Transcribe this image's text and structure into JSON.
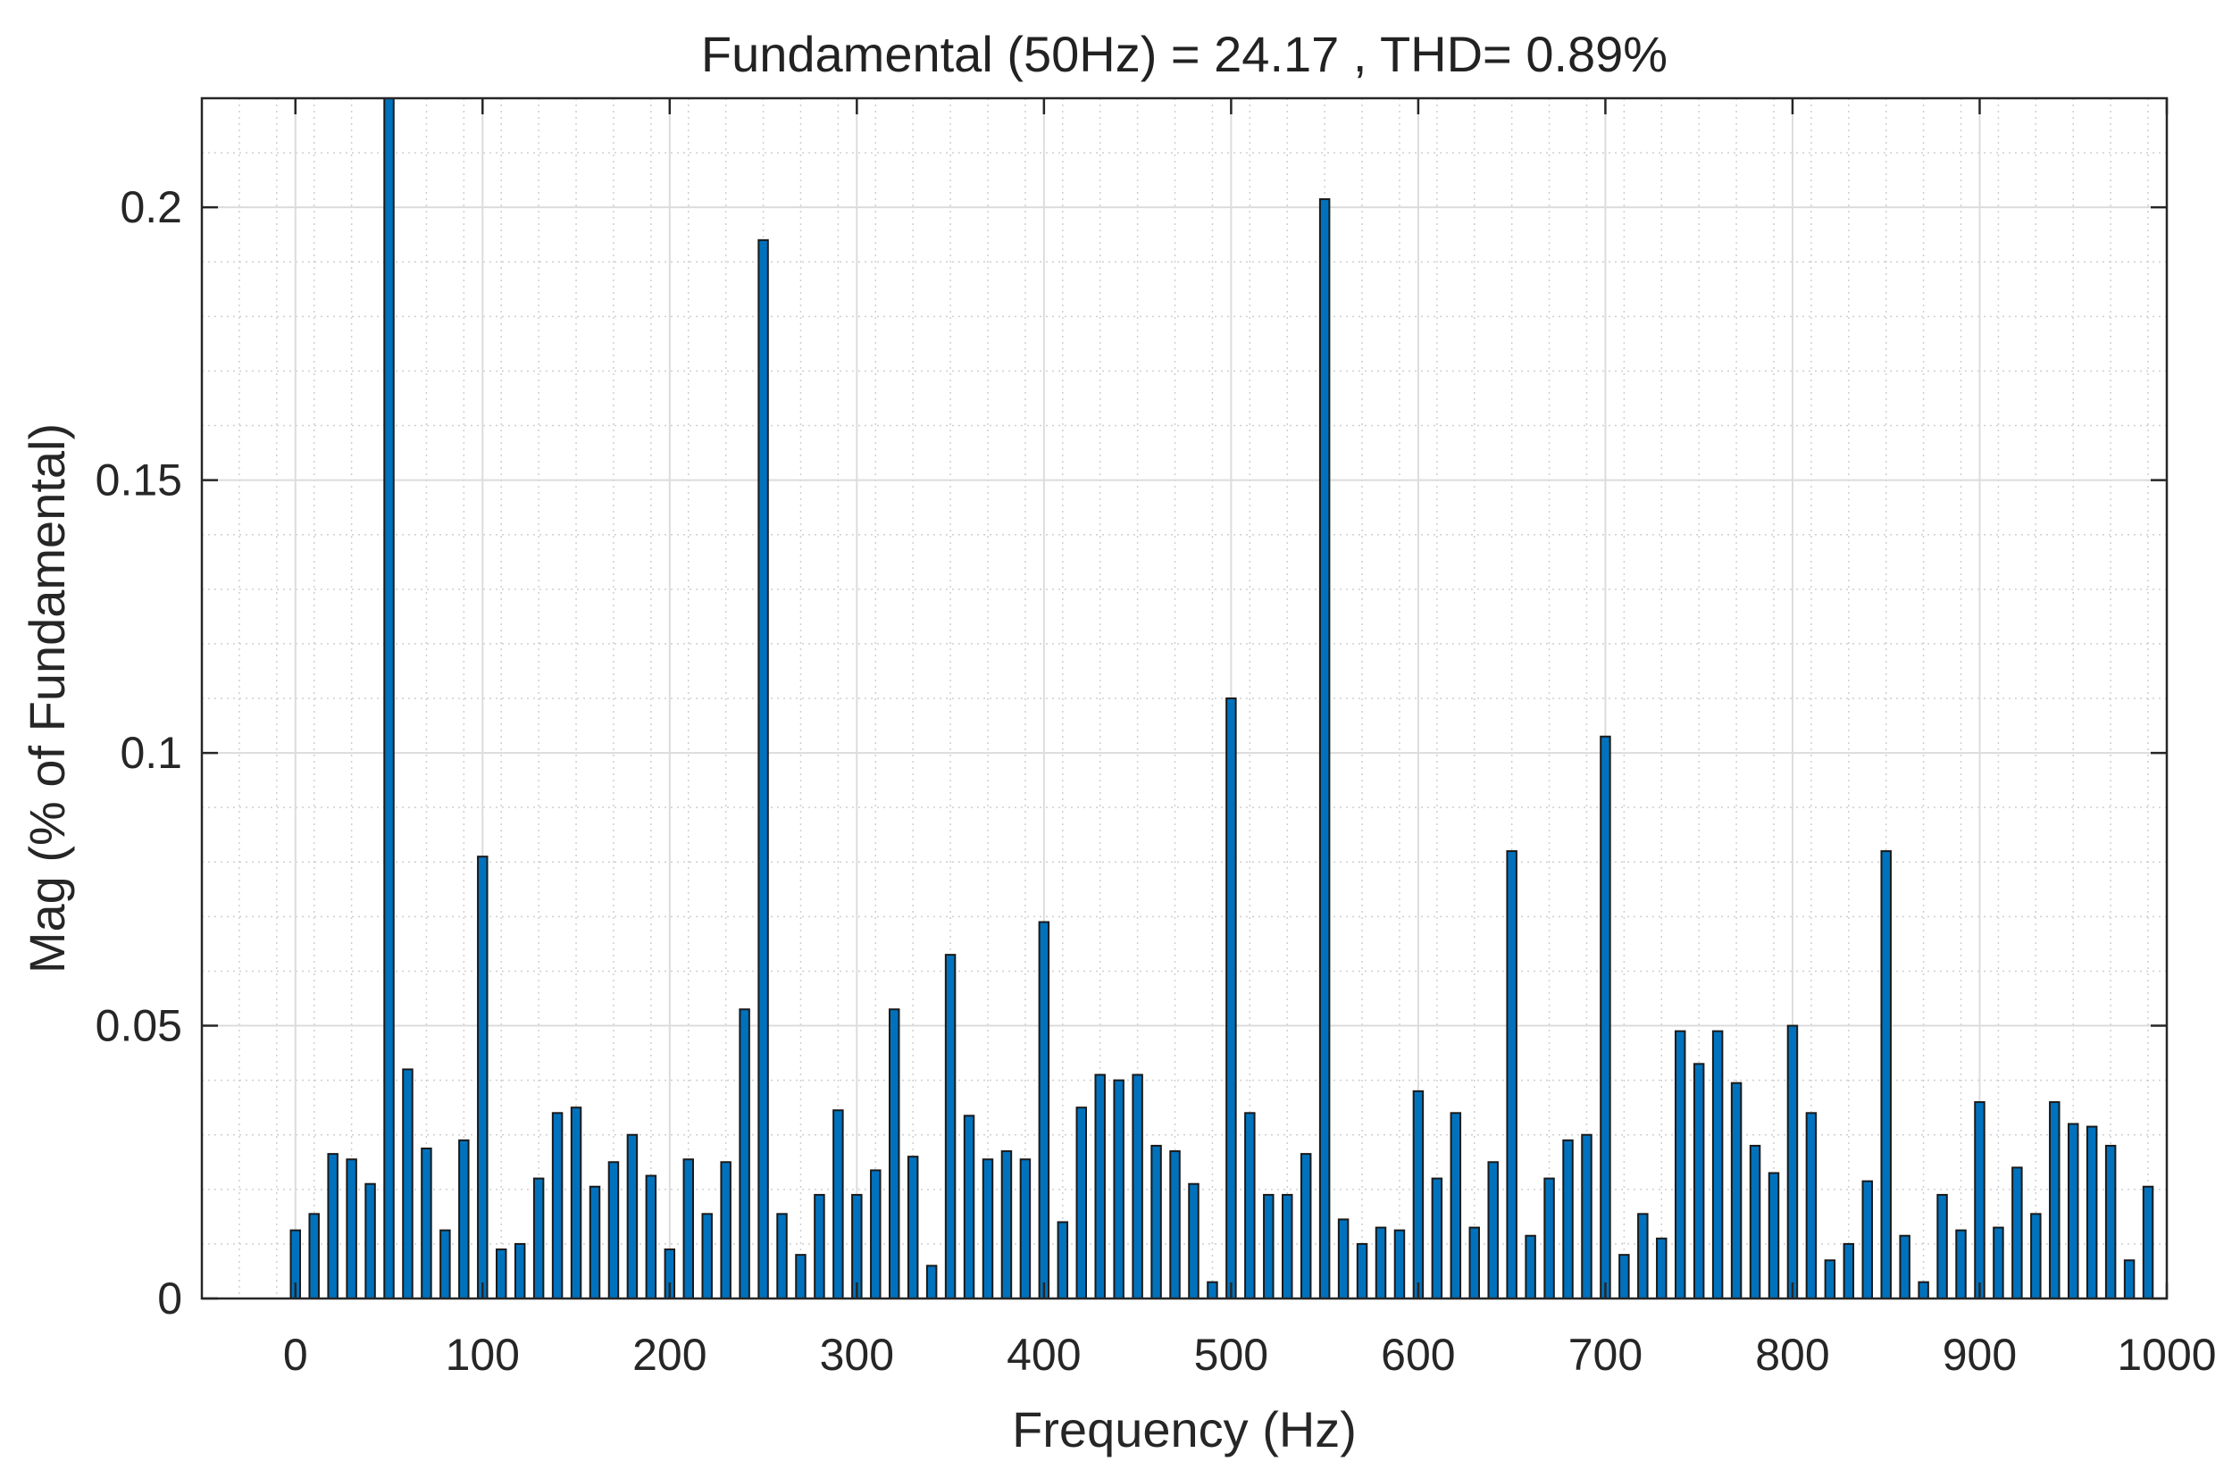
{
  "chart_data": {
    "type": "bar",
    "title": "Fundamental (50Hz) = 24.17 , THD= 0.89%",
    "xlabel": "Frequency (Hz)",
    "ylabel": "Mag (% of Fundamental)",
    "xlim": [
      -50,
      1000
    ],
    "ylim": [
      0,
      0.22
    ],
    "xticks": [
      "0",
      "100",
      "200",
      "300",
      "400",
      "500",
      "600",
      "700",
      "800",
      "900",
      "1000"
    ],
    "yticks": [
      "0",
      "0.05",
      "0.1",
      "0.15",
      "0.2"
    ],
    "grid": true,
    "bar_color": "#0072bd",
    "edge_color": "#1a1a1a",
    "x": [
      0,
      10,
      20,
      30,
      40,
      50,
      60,
      70,
      80,
      90,
      100,
      110,
      120,
      130,
      140,
      150,
      160,
      170,
      180,
      190,
      200,
      210,
      220,
      230,
      240,
      250,
      260,
      270,
      280,
      290,
      300,
      310,
      320,
      330,
      340,
      350,
      360,
      370,
      380,
      390,
      400,
      410,
      420,
      430,
      440,
      450,
      460,
      470,
      480,
      490,
      500,
      510,
      520,
      530,
      540,
      550,
      560,
      570,
      580,
      590,
      600,
      610,
      620,
      630,
      640,
      650,
      660,
      670,
      680,
      690,
      700,
      710,
      720,
      730,
      740,
      750,
      760,
      770,
      780,
      790,
      800,
      810,
      820,
      830,
      840,
      850,
      860,
      870,
      880,
      890,
      900,
      910,
      920,
      930,
      940,
      950,
      960,
      970,
      980,
      990
    ],
    "values": [
      0.0125,
      0.0155,
      0.0265,
      0.0255,
      0.021,
      0.22,
      0.042,
      0.0275,
      0.0125,
      0.029,
      0.081,
      0.009,
      0.01,
      0.022,
      0.034,
      0.035,
      0.0205,
      0.025,
      0.03,
      0.0225,
      0.009,
      0.0255,
      0.0155,
      0.025,
      0.053,
      0.194,
      0.0155,
      0.008,
      0.019,
      0.0345,
      0.019,
      0.0235,
      0.053,
      0.026,
      0.006,
      0.063,
      0.0335,
      0.0255,
      0.027,
      0.0255,
      0.069,
      0.014,
      0.035,
      0.041,
      0.04,
      0.041,
      0.028,
      0.027,
      0.021,
      0.003,
      0.11,
      0.034,
      0.019,
      0.019,
      0.0265,
      0.2015,
      0.0145,
      0.01,
      0.013,
      0.0125,
      0.038,
      0.022,
      0.034,
      0.013,
      0.025,
      0.082,
      0.0115,
      0.022,
      0.029,
      0.03,
      0.103,
      0.008,
      0.0155,
      0.011,
      0.049,
      0.043,
      0.049,
      0.0395,
      0.028,
      0.023,
      0.05,
      0.034,
      0.007,
      0.01,
      0.0215,
      0.082,
      0.0115,
      0.003,
      0.019,
      0.0125,
      0.036,
      0.013,
      0.024,
      0.0155,
      0.036,
      0.032,
      0.0315,
      0.028,
      0.007,
      0.0205
    ]
  }
}
